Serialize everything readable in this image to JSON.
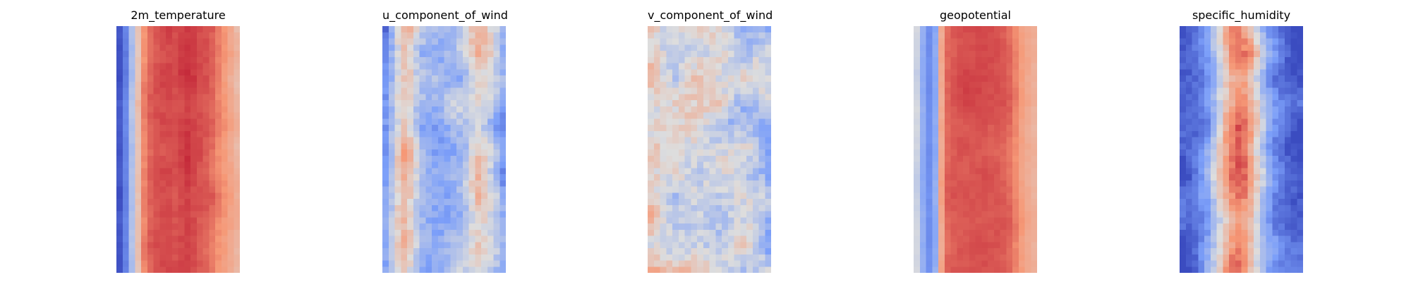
{
  "chart_data": [
    {
      "type": "heatmap",
      "title": "2m_temperature",
      "colormap": "coolwarm",
      "axes": "off",
      "grid": [
        40,
        20
      ],
      "band_center": [
        {
          "col": 0,
          "value": 0.03
        },
        {
          "col": 1,
          "value": 0.16
        },
        {
          "col": 2,
          "value": 0.38
        },
        {
          "col": 3,
          "value": 0.6
        },
        {
          "col": 4,
          "value": 0.78
        },
        {
          "col": 5,
          "value": 0.84
        },
        {
          "col": 6,
          "value": 0.87
        },
        {
          "col": 7,
          "value": 0.88
        },
        {
          "col": 8,
          "value": 0.89
        },
        {
          "col": 9,
          "value": 0.88
        },
        {
          "col": 10,
          "value": 0.9
        },
        {
          "col": 11,
          "value": 0.92
        },
        {
          "col": 12,
          "value": 0.9
        },
        {
          "col": 13,
          "value": 0.88
        },
        {
          "col": 14,
          "value": 0.86
        },
        {
          "col": 15,
          "value": 0.83
        },
        {
          "col": 16,
          "value": 0.78
        },
        {
          "col": 17,
          "value": 0.74
        },
        {
          "col": 18,
          "value": 0.69
        },
        {
          "col": 19,
          "value": 0.64
        }
      ],
      "noise": 0.05
    },
    {
      "type": "heatmap",
      "title": "u_component_of_wind",
      "colormap": "coolwarm",
      "axes": "off",
      "grid": [
        40,
        20
      ],
      "band_center": [
        {
          "col": 0,
          "value": 0.22
        },
        {
          "col": 1,
          "value": 0.35
        },
        {
          "col": 2,
          "value": 0.52
        },
        {
          "col": 3,
          "value": 0.62
        },
        {
          "col": 4,
          "value": 0.58
        },
        {
          "col": 5,
          "value": 0.46
        },
        {
          "col": 6,
          "value": 0.38
        },
        {
          "col": 7,
          "value": 0.34
        },
        {
          "col": 8,
          "value": 0.33
        },
        {
          "col": 9,
          "value": 0.32
        },
        {
          "col": 10,
          "value": 0.34
        },
        {
          "col": 11,
          "value": 0.36
        },
        {
          "col": 12,
          "value": 0.38
        },
        {
          "col": 13,
          "value": 0.42
        },
        {
          "col": 14,
          "value": 0.5
        },
        {
          "col": 15,
          "value": 0.56
        },
        {
          "col": 16,
          "value": 0.52
        },
        {
          "col": 17,
          "value": 0.44
        },
        {
          "col": 18,
          "value": 0.36
        },
        {
          "col": 19,
          "value": 0.25
        }
      ],
      "noise": 0.18
    },
    {
      "type": "heatmap",
      "title": "v_component_of_wind",
      "colormap": "coolwarm",
      "axes": "off",
      "grid": [
        40,
        20
      ],
      "band_center": [
        {
          "col": 0,
          "value": 0.56
        },
        {
          "col": 1,
          "value": 0.54
        },
        {
          "col": 2,
          "value": 0.5
        },
        {
          "col": 3,
          "value": 0.48
        },
        {
          "col": 4,
          "value": 0.47
        },
        {
          "col": 5,
          "value": 0.48
        },
        {
          "col": 6,
          "value": 0.49
        },
        {
          "col": 7,
          "value": 0.5
        },
        {
          "col": 8,
          "value": 0.5
        },
        {
          "col": 9,
          "value": 0.49
        },
        {
          "col": 10,
          "value": 0.48
        },
        {
          "col": 11,
          "value": 0.47
        },
        {
          "col": 12,
          "value": 0.46
        },
        {
          "col": 13,
          "value": 0.45
        },
        {
          "col": 14,
          "value": 0.44
        },
        {
          "col": 15,
          "value": 0.43
        },
        {
          "col": 16,
          "value": 0.43
        },
        {
          "col": 17,
          "value": 0.42
        },
        {
          "col": 18,
          "value": 0.4
        },
        {
          "col": 19,
          "value": 0.36
        }
      ],
      "noise": 0.22
    },
    {
      "type": "heatmap",
      "title": "geopotential",
      "colormap": "coolwarm",
      "axes": "off",
      "grid": [
        40,
        20
      ],
      "band_center": [
        {
          "col": 0,
          "value": 0.45
        },
        {
          "col": 1,
          "value": 0.3
        },
        {
          "col": 2,
          "value": 0.2
        },
        {
          "col": 3,
          "value": 0.3
        },
        {
          "col": 4,
          "value": 0.7
        },
        {
          "col": 5,
          "value": 0.84
        },
        {
          "col": 6,
          "value": 0.86
        },
        {
          "col": 7,
          "value": 0.87
        },
        {
          "col": 8,
          "value": 0.87
        },
        {
          "col": 9,
          "value": 0.87
        },
        {
          "col": 10,
          "value": 0.87
        },
        {
          "col": 11,
          "value": 0.87
        },
        {
          "col": 12,
          "value": 0.86
        },
        {
          "col": 13,
          "value": 0.86
        },
        {
          "col": 14,
          "value": 0.85
        },
        {
          "col": 15,
          "value": 0.83
        },
        {
          "col": 16,
          "value": 0.78
        },
        {
          "col": 17,
          "value": 0.72
        },
        {
          "col": 18,
          "value": 0.68
        },
        {
          "col": 19,
          "value": 0.65
        }
      ],
      "noise": 0.04
    },
    {
      "type": "heatmap",
      "title": "specific_humidity",
      "colormap": "coolwarm",
      "axes": "off",
      "grid": [
        40,
        20
      ],
      "band_center": [
        {
          "col": 0,
          "value": 0.03
        },
        {
          "col": 1,
          "value": 0.06
        },
        {
          "col": 2,
          "value": 0.1
        },
        {
          "col": 3,
          "value": 0.18
        },
        {
          "col": 4,
          "value": 0.26
        },
        {
          "col": 5,
          "value": 0.38
        },
        {
          "col": 6,
          "value": 0.52
        },
        {
          "col": 7,
          "value": 0.66
        },
        {
          "col": 8,
          "value": 0.76
        },
        {
          "col": 9,
          "value": 0.8
        },
        {
          "col": 10,
          "value": 0.76
        },
        {
          "col": 11,
          "value": 0.66
        },
        {
          "col": 12,
          "value": 0.52
        },
        {
          "col": 13,
          "value": 0.38
        },
        {
          "col": 14,
          "value": 0.26
        },
        {
          "col": 15,
          "value": 0.18
        },
        {
          "col": 16,
          "value": 0.12
        },
        {
          "col": 17,
          "value": 0.08
        },
        {
          "col": 18,
          "value": 0.05
        },
        {
          "col": 19,
          "value": 0.03
        }
      ],
      "noise": 0.16
    }
  ]
}
